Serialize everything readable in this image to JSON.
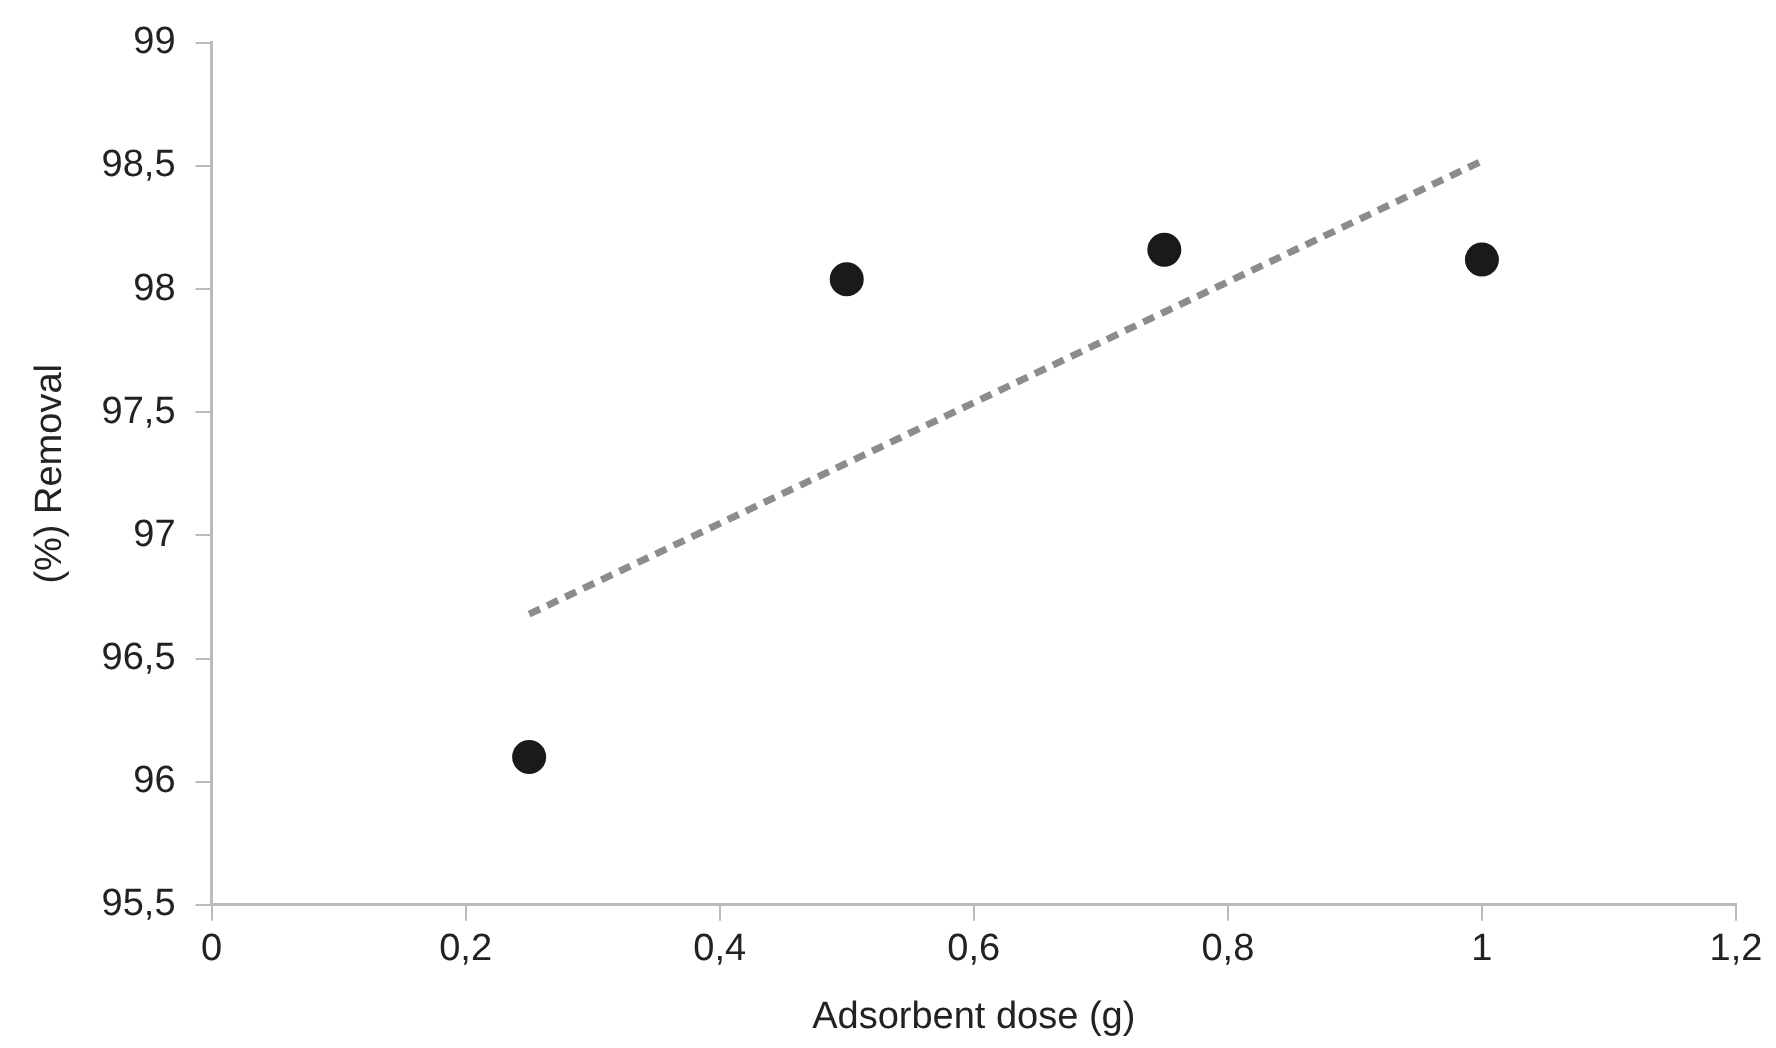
{
  "chart_data": {
    "type": "scatter",
    "xlabel": "Adsorbent dose (g)",
    "ylabel": "(%) Removal",
    "series": [
      {
        "color": "#1a1a1a",
        "x": [
          0.25,
          0.5,
          0.75,
          1
        ],
        "values": [
          96.1,
          98.04,
          98.16,
          98.12
        ],
        "marker": "circle"
      },
      {
        "type": "line",
        "color": "#8c8c8c",
        "x": [
          0.25,
          1
        ],
        "values": [
          96.68,
          98.52
        ],
        "line_style": "dashed",
        "marker": "none"
      }
    ],
    "xlim": [
      0,
      1.2
    ],
    "xticks": [
      0,
      {
        "value": 0.2,
        "label": "0,2"
      },
      {
        "value": 0.4,
        "label": "0,4"
      },
      {
        "value": 0.6,
        "label": "0,6"
      },
      {
        "value": 0.8,
        "label": "0,8"
      },
      1,
      {
        "value": 1.2,
        "label": "1,2"
      }
    ],
    "ylim": [
      95.5,
      99
    ],
    "yticks": [
      {
        "value": 95.5,
        "label": "95,5"
      },
      96,
      {
        "value": 96.5,
        "label": "96,5"
      },
      97,
      {
        "value": 97.5,
        "label": "97,5"
      },
      98,
      {
        "value": 98.5,
        "label": "98,5"
      },
      99
    ],
    "grid": false,
    "legend": false
  }
}
